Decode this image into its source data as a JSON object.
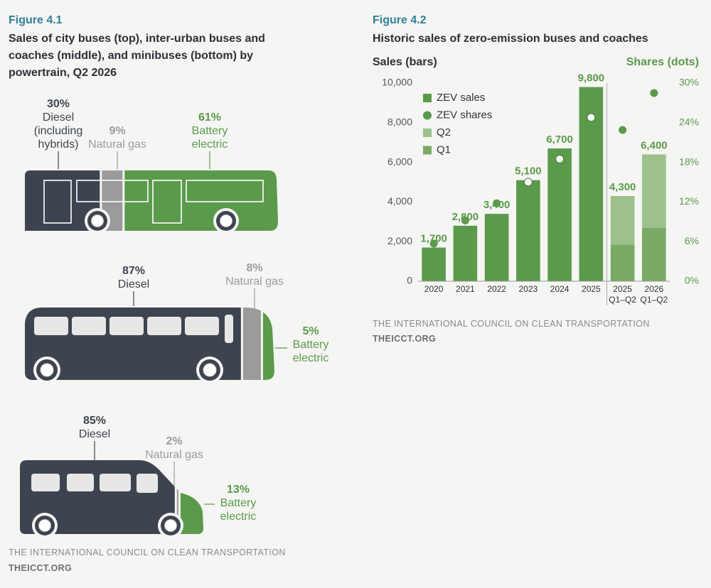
{
  "chart_data": [
    {
      "type": "share",
      "label": "Figure 4.1",
      "title": "Sales of city buses (top), inter-urban buses and coaches (middle), and minibuses (bottom) by powertrain, Q2 2026",
      "colors": [
        "#3d4450",
        "#9b9b9b",
        "#5b9a4a"
      ],
      "panels": [
        {
          "categories": [
            "Diesel (including hybrids)",
            "Natural gas",
            "Battery electric"
          ],
          "values": [
            30,
            9,
            61
          ],
          "value_labels": [
            "30%",
            "9%",
            "61%"
          ]
        },
        {
          "categories": [
            "Diesel",
            "Natural gas",
            "Battery electric"
          ],
          "values": [
            87,
            8,
            5
          ],
          "value_labels": [
            "87%",
            "8%",
            "5%"
          ]
        },
        {
          "categories": [
            "Diesel",
            "Natural gas",
            "Battery electric"
          ],
          "values": [
            85,
            2,
            13
          ],
          "value_labels": [
            "85%",
            "2%",
            "13%"
          ]
        }
      ],
      "source": "THE INTERNATIONAL COUNCIL ON CLEAN TRANSPORTATION",
      "site": "THEICCT.ORG"
    },
    {
      "type": "bar",
      "label": "Figure 4.2",
      "title": "Historic sales of zero-emission buses and coaches",
      "ylabel": "Sales (bars)",
      "y2label": "Shares (dots)",
      "categories": [
        "2020",
        "2021",
        "2022",
        "2023",
        "2024",
        "2025",
        "2025 Q1–Q2",
        "2026 Q1–Q2"
      ],
      "series": [
        {
          "name": "ZEV sales",
          "color": "#5b9a4a",
          "values": [
            1700,
            2800,
            3400,
            5100,
            6700,
            9800,
            4300,
            6400
          ],
          "value_labels": [
            "1,700",
            "2,800",
            "3,400",
            "5,100",
            "6,700",
            "9,800",
            "4,300",
            "6,400"
          ]
        },
        {
          "name": "ZEV shares",
          "color": "#5b9a4a",
          "axis": "y2",
          "values": [
            5.7,
            9.2,
            11.8,
            15.0,
            18.5,
            24.8,
            22.9,
            28.5
          ]
        },
        {
          "name": "Q2",
          "color": "#9cc18a",
          "values": [
            null,
            null,
            null,
            null,
            null,
            null,
            2450,
            3700
          ]
        },
        {
          "name": "Q1",
          "color": "#79aa66",
          "values": [
            null,
            null,
            null,
            null,
            null,
            null,
            1850,
            2700
          ]
        }
      ],
      "ylim": [
        0,
        10000
      ],
      "yticks": [
        0,
        {
          "value": 2000,
          "label": "2,000"
        },
        {
          "value": 4000,
          "label": "4,000"
        },
        {
          "value": 6000,
          "label": "6,000"
        },
        {
          "value": 8000,
          "label": "8,000"
        },
        {
          "value": 10000,
          "label": "10,000"
        }
      ],
      "y2lim": [
        0,
        30
      ],
      "y2ticks": [
        {
          "value": 0,
          "label": "0%"
        },
        {
          "value": 6,
          "label": "6%"
        },
        {
          "value": 12,
          "label": "12%"
        },
        {
          "value": 18,
          "label": "18%"
        },
        {
          "value": 24,
          "label": "24%"
        },
        {
          "value": 30,
          "label": "30%"
        }
      ],
      "source": "THE INTERNATIONAL COUNCIL ON CLEAN TRANSPORTATION",
      "site": "THEICCT.ORG"
    }
  ]
}
